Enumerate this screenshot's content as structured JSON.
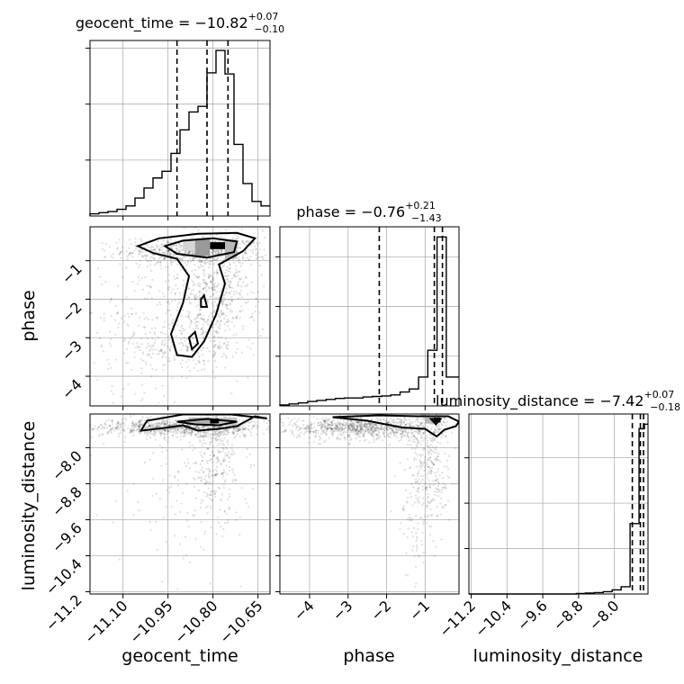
{
  "chart_data": {
    "type": "corner",
    "parameters": [
      "geocent_time",
      "phase",
      "luminosity_distance"
    ],
    "grid": true,
    "titles": [
      {
        "param": "geocent_time",
        "name": "geocent_time",
        "median": "−10.82",
        "plus": "+0.07",
        "minus": "−0.10"
      },
      {
        "param": "phase",
        "name": "phase",
        "median": "−0.76",
        "plus": "+0.21",
        "minus": "−1.43"
      },
      {
        "param": "luminosity_distance",
        "name": "luminosity_distance",
        "median": "−7.42",
        "plus": "+0.07",
        "minus": "−0.18"
      }
    ],
    "axes": {
      "geocent_time": {
        "label": "geocent_time",
        "range": [
          -11.21,
          -10.61
        ],
        "ticks": [
          -11.1,
          -10.95,
          -10.8,
          -10.65
        ],
        "tick_labels": [
          "−11.10",
          "−10.95",
          "−10.80",
          "−10.65"
        ]
      },
      "phase": {
        "label": "phase",
        "range": [
          -4.77,
          -0.12
        ],
        "ticks": [
          -4,
          -3,
          -2,
          -1
        ],
        "tick_labels": [
          "−4",
          "−3",
          "−2",
          "−1"
        ]
      },
      "luminosity_distance": {
        "label": "luminosity_distance",
        "range": [
          -11.25,
          -7.25
        ],
        "ticks": [
          -11.2,
          -10.4,
          -9.6,
          -8.8,
          -8.0
        ],
        "tick_labels": [
          "−11.2",
          "−10.4",
          "−9.6",
          "−8.8",
          "−8.0"
        ]
      }
    },
    "histograms": {
      "geocent_time": {
        "edges": [
          -11.21,
          -11.18,
          -11.15,
          -11.12,
          -11.09,
          -11.06,
          -11.03,
          -11.0,
          -10.97,
          -10.94,
          -10.91,
          -10.88,
          -10.85,
          -10.82,
          -10.79,
          -10.76,
          -10.73,
          -10.7,
          -10.67,
          -10.64,
          -10.61
        ],
        "counts": [
          2,
          3,
          4,
          6,
          9,
          16,
          25,
          34,
          40,
          56,
          77,
          93,
          98,
          128,
          148,
          127,
          64,
          29,
          13,
          9
        ],
        "quantiles": [
          -10.92,
          -10.82,
          -10.75
        ],
        "grid_counts": [
          50,
          100,
          150
        ]
      },
      "phase": {
        "edges": [
          -4.77,
          -4.53,
          -4.29,
          -4.05,
          -3.81,
          -3.57,
          -3.33,
          -3.09,
          -2.85,
          -2.61,
          -2.37,
          -2.13,
          -1.89,
          -1.65,
          -1.41,
          -1.17,
          -0.93,
          -0.69,
          -0.45,
          -0.12
        ],
        "counts": [
          2,
          4,
          6,
          9,
          11,
          13,
          15,
          16,
          16,
          18,
          19,
          20,
          22,
          28,
          34,
          58,
          112,
          340,
          58
        ],
        "quantiles": [
          -2.19,
          -0.76,
          -0.55
        ],
        "grid_counts": [
          100,
          200,
          300
        ]
      },
      "luminosity_distance": {
        "edges": [
          -11.25,
          -11.05,
          -10.85,
          -10.65,
          -10.45,
          -10.25,
          -10.05,
          -9.85,
          -9.65,
          -9.45,
          -9.25,
          -9.05,
          -8.85,
          -8.65,
          -8.45,
          -8.25,
          -8.05,
          -7.85,
          -7.65,
          -7.45,
          -7.33,
          -7.25
        ],
        "counts": [
          0,
          0,
          0,
          0,
          0,
          0,
          0,
          0,
          0,
          0,
          0,
          0,
          1,
          2,
          3,
          5,
          9,
          16,
          155,
          364,
          374
        ],
        "quantiles": [
          -7.6,
          -7.42,
          -7.35
        ],
        "grid_counts": [
          100,
          200,
          300
        ]
      }
    },
    "scatter_panels": [
      {
        "x": "geocent_time",
        "y": "phase",
        "clusters": [
          {
            "cx": -10.86,
            "cy": -0.75,
            "sx": 0.12,
            "sy": 0.18,
            "n": 650
          },
          {
            "cx": -10.82,
            "cy": -1.9,
            "sx": 0.06,
            "sy": 0.85,
            "n": 420
          },
          {
            "cx": -11.02,
            "cy": -2.6,
            "sx": 0.14,
            "sy": 0.9,
            "n": 260
          },
          {
            "cx": -10.74,
            "cy": -2.0,
            "sx": 0.06,
            "sy": 0.9,
            "n": 180
          },
          {
            "cx": -10.93,
            "cy": -3.3,
            "sx": 0.1,
            "sy": 0.35,
            "n": 120
          }
        ],
        "density_blocks": [
          {
            "x": [
              -10.81,
              -10.76
            ],
            "y": [
              -0.7,
              -0.52
            ],
            "shade": "#000000"
          },
          {
            "x": [
              -10.86,
              -10.81
            ],
            "y": [
              -0.88,
              -0.45
            ],
            "shade": "#9a9a9a"
          },
          {
            "x": [
              -10.76,
              -10.72
            ],
            "y": [
              -0.95,
              -0.45
            ],
            "shade": "#b8b8b8"
          },
          {
            "x": [
              -10.9,
              -10.86
            ],
            "y": [
              -0.75,
              -0.45
            ],
            "shade": "#d6d6d6"
          }
        ],
        "contours": [
          [
            [
              -11.05,
              -0.62
            ],
            [
              -10.98,
              -0.42
            ],
            [
              -10.85,
              -0.3
            ],
            [
              -10.72,
              -0.28
            ],
            [
              -10.66,
              -0.42
            ],
            [
              -10.7,
              -0.75
            ],
            [
              -10.78,
              -1.1
            ],
            [
              -10.76,
              -1.6
            ],
            [
              -10.79,
              -2.4
            ],
            [
              -10.83,
              -3.1
            ],
            [
              -10.87,
              -3.5
            ],
            [
              -10.92,
              -3.45
            ],
            [
              -10.94,
              -2.9
            ],
            [
              -10.9,
              -2.1
            ],
            [
              -10.88,
              -1.4
            ],
            [
              -10.92,
              -0.95
            ],
            [
              -11.0,
              -0.8
            ],
            [
              -11.05,
              -0.62
            ]
          ],
          [
            [
              -10.96,
              -0.62
            ],
            [
              -10.9,
              -0.48
            ],
            [
              -10.8,
              -0.42
            ],
            [
              -10.72,
              -0.5
            ],
            [
              -10.73,
              -0.78
            ],
            [
              -10.82,
              -0.92
            ],
            [
              -10.92,
              -0.82
            ],
            [
              -10.96,
              -0.62
            ]
          ],
          [
            [
              -10.88,
              -3.0
            ],
            [
              -10.86,
              -2.85
            ],
            [
              -10.85,
              -3.15
            ],
            [
              -10.87,
              -3.3
            ],
            [
              -10.88,
              -3.0
            ]
          ],
          [
            [
              -10.84,
              -2.0
            ],
            [
              -10.83,
              -1.9
            ],
            [
              -10.82,
              -2.2
            ],
            [
              -10.84,
              -2.2
            ],
            [
              -10.84,
              -2.0
            ]
          ]
        ]
      },
      {
        "x": "geocent_time",
        "y": "luminosity_distance",
        "clusters": [
          {
            "cx": -10.9,
            "cy": -7.55,
            "sx": 0.15,
            "sy": 0.1,
            "n": 900
          },
          {
            "cx": -10.79,
            "cy": -8.4,
            "sx": 0.05,
            "sy": 0.7,
            "n": 300
          },
          {
            "cx": -10.95,
            "cy": -9.2,
            "sx": 0.1,
            "sy": 0.9,
            "n": 80
          }
        ],
        "density_blocks": [
          {
            "x": [
              -10.81,
              -10.78
            ],
            "y": [
              -7.46,
              -7.35
            ],
            "shade": "#000000"
          },
          {
            "x": [
              -10.88,
              -10.81
            ],
            "y": [
              -7.5,
              -7.33
            ],
            "shade": "#b0b0b0"
          },
          {
            "x": [
              -10.78,
              -10.72
            ],
            "y": [
              -7.5,
              -7.33
            ],
            "shade": "#c4c4c4"
          }
        ],
        "contours": [
          [
            [
              -11.04,
              -7.62
            ],
            [
              -10.95,
              -7.55
            ],
            [
              -10.9,
              -7.5
            ],
            [
              -10.85,
              -7.62
            ],
            [
              -10.78,
              -7.58
            ],
            [
              -10.72,
              -7.52
            ],
            [
              -10.66,
              -7.3
            ],
            [
              -10.62,
              -7.35
            ],
            [
              -10.74,
              -7.26
            ],
            [
              -10.9,
              -7.26
            ],
            [
              -11.02,
              -7.4
            ],
            [
              -11.04,
              -7.62
            ]
          ],
          [
            [
              -10.92,
              -7.42
            ],
            [
              -10.82,
              -7.36
            ],
            [
              -10.72,
              -7.42
            ],
            [
              -10.78,
              -7.5
            ],
            [
              -10.86,
              -7.48
            ],
            [
              -10.92,
              -7.42
            ]
          ]
        ]
      },
      {
        "x": "phase",
        "y": "luminosity_distance",
        "clusters": [
          {
            "cx": -2.6,
            "cy": -7.55,
            "sx": 1.0,
            "sy": 0.12,
            "n": 900
          },
          {
            "cx": -0.9,
            "cy": -8.4,
            "sx": 0.25,
            "sy": 0.7,
            "n": 300
          },
          {
            "cx": -1.2,
            "cy": -9.5,
            "sx": 0.3,
            "sy": 0.8,
            "n": 70
          }
        ],
        "density_blocks": [
          {
            "x": [
              -0.78,
              -0.6
            ],
            "y": [
              -7.44,
              -7.33
            ],
            "shade": "#000000"
          },
          {
            "x": [
              -1.0,
              -0.78
            ],
            "y": [
              -7.46,
              -7.33
            ],
            "shade": "#b8b8b8"
          }
        ],
        "contours": [
          [
            [
              -3.4,
              -7.32
            ],
            [
              -2.5,
              -7.4
            ],
            [
              -1.6,
              -7.55
            ],
            [
              -1.0,
              -7.58
            ],
            [
              -0.7,
              -7.75
            ],
            [
              -0.5,
              -7.6
            ],
            [
              -0.2,
              -7.52
            ],
            [
              -0.12,
              -7.42
            ],
            [
              -0.4,
              -7.3
            ],
            [
              -1.2,
              -7.3
            ],
            [
              -2.2,
              -7.28
            ],
            [
              -3.4,
              -7.32
            ]
          ],
          [
            [
              -0.85,
              -7.36
            ],
            [
              -0.6,
              -7.36
            ],
            [
              -0.72,
              -7.48
            ],
            [
              -0.85,
              -7.36
            ]
          ]
        ]
      }
    ]
  }
}
